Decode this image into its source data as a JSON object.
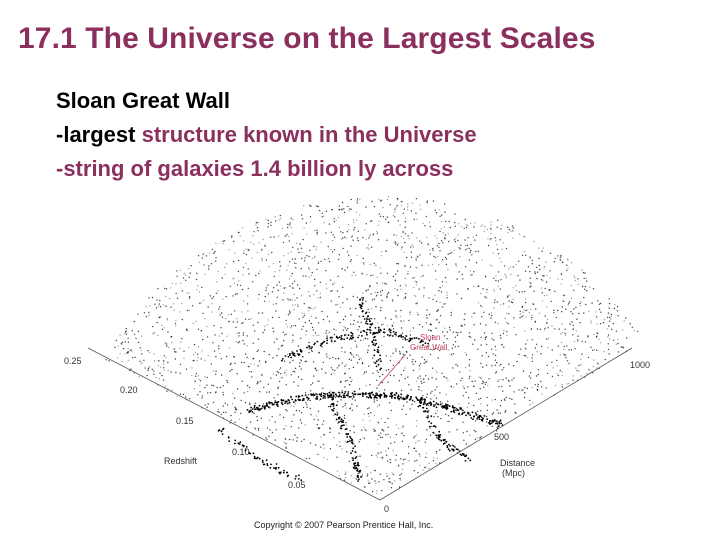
{
  "slide": {
    "title": "17.1 The Universe on the Largest Scales",
    "bullets": [
      {
        "parts": [
          {
            "text": "Sloan Great Wall",
            "accent": false
          }
        ]
      },
      {
        "parts": [
          {
            "text": "-largest ",
            "accent": false
          },
          {
            "text": "structure known in the Universe",
            "accent": true
          }
        ]
      },
      {
        "parts": [
          {
            "text": "-string of galaxies 1.4 billion ly across",
            "accent": true
          }
        ]
      }
    ]
  },
  "figure": {
    "redshift_axis": {
      "title": "Redshift",
      "ticks": [
        "0.05",
        "0.10",
        "0.15",
        "0.20",
        "0.25"
      ]
    },
    "distance_axis": {
      "title_line1": "Distance",
      "title_line2": "(Mpc)",
      "ticks": [
        "0",
        "500",
        "1000"
      ]
    },
    "wall_label_line1": "Sloan",
    "wall_label_line2": "Great Wall",
    "copyright": "Copyright © 2007 Pearson Prentice Hall, Inc."
  },
  "colors": {
    "title": "#8b2f5d",
    "accent": "#8b2f5d",
    "wall_label": "#c2405f"
  }
}
